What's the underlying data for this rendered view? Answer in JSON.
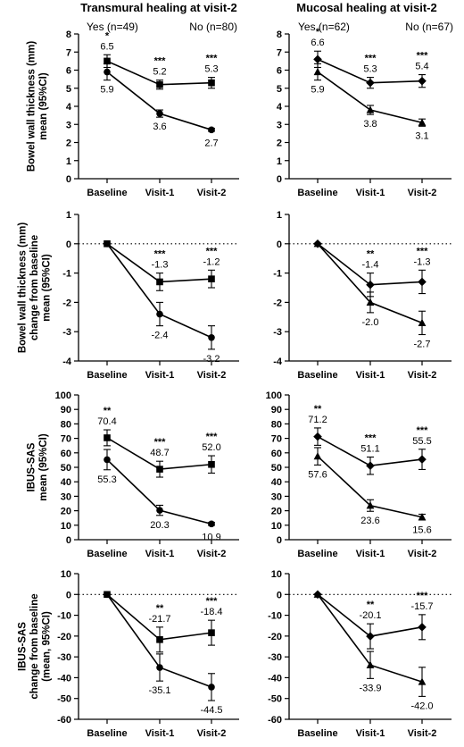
{
  "figure": {
    "columns": [
      {
        "title": "Transmural healing at visit-2",
        "legend_yes": "Yes (n=49)",
        "legend_no": "No (n=80)"
      },
      {
        "title": "Mucosal healing at visit-2",
        "legend_yes": "Yes (n=62)",
        "legend_no": "No (n=67)"
      }
    ]
  },
  "chart_data": [
    {
      "type": "line",
      "row": 0,
      "col": 0,
      "ylabel": [
        "Bowel wall thickness (mm)",
        "mean (95%CI)"
      ],
      "categories": [
        "Baseline",
        "Visit-1",
        "Visit-2"
      ],
      "ylim": [
        0,
        8
      ],
      "ticks": [
        0,
        1,
        2,
        3,
        4,
        5,
        6,
        7,
        8
      ],
      "tick_labels": [
        "0",
        "1",
        "2",
        "3",
        "4",
        "5",
        "6",
        "7",
        "8"
      ],
      "zero_line": false,
      "series": [
        {
          "marker": "square",
          "values": [
            6.5,
            5.2,
            5.3
          ],
          "err": [
            0.35,
            0.25,
            0.3
          ],
          "labels": [
            "6.5",
            "5.2",
            "5.3"
          ],
          "label_pos": "above"
        },
        {
          "marker": "circle",
          "values": [
            5.9,
            3.6,
            2.7
          ],
          "err": [
            0.45,
            0.2,
            0.08
          ],
          "labels": [
            "5.9",
            "3.6",
            "2.7"
          ],
          "label_pos": "below"
        }
      ],
      "significance": [
        "*",
        "***",
        "***"
      ]
    },
    {
      "type": "line",
      "row": 0,
      "col": 1,
      "ylabel": [],
      "categories": [
        "Baseline",
        "Visit-1",
        "Visit-2"
      ],
      "ylim": [
        0,
        8
      ],
      "ticks": [
        0,
        1,
        2,
        3,
        4,
        5,
        6,
        7,
        8
      ],
      "tick_labels": [
        "0",
        "1",
        "2",
        "3",
        "4",
        "5",
        "6",
        "7",
        "8"
      ],
      "zero_line": false,
      "series": [
        {
          "marker": "diamond",
          "values": [
            6.6,
            5.3,
            5.4
          ],
          "err": [
            0.45,
            0.3,
            0.35
          ],
          "labels": [
            "6.6",
            "5.3",
            "5.4"
          ],
          "label_pos": "above"
        },
        {
          "marker": "triangle",
          "values": [
            5.9,
            3.8,
            3.1
          ],
          "err": [
            0.45,
            0.25,
            0.2
          ],
          "labels": [
            "5.9",
            "3.8",
            "3.1"
          ],
          "label_pos": "below"
        }
      ],
      "significance": [
        "*",
        "***",
        "***"
      ]
    },
    {
      "type": "line",
      "row": 1,
      "col": 0,
      "ylabel": [
        "Bowel wall thickness (mm)",
        "change from baseline",
        "mean (95%CI)"
      ],
      "categories": [
        "Baseline",
        "Visit-1",
        "Visit-2"
      ],
      "ylim": [
        -4,
        1
      ],
      "ticks": [
        -4,
        -3,
        -2,
        -1,
        0,
        1
      ],
      "tick_labels": [
        "-4",
        "-3",
        "-2",
        "-1",
        "0",
        "1"
      ],
      "zero_line": true,
      "series": [
        {
          "marker": "square",
          "values": [
            0,
            -1.3,
            -1.2
          ],
          "err": [
            0,
            0.3,
            0.3
          ],
          "labels": [
            "",
            "-1.3",
            "-1.2"
          ],
          "label_pos": "above"
        },
        {
          "marker": "circle",
          "values": [
            0,
            -2.4,
            -3.2
          ],
          "err": [
            0,
            0.4,
            0.4
          ],
          "labels": [
            "",
            "-2.4",
            "-3.2"
          ],
          "label_pos": "below"
        }
      ],
      "significance": [
        "",
        "***",
        "***"
      ]
    },
    {
      "type": "line",
      "row": 1,
      "col": 1,
      "ylabel": [],
      "categories": [
        "Baseline",
        "Visit-1",
        "Visit-2"
      ],
      "ylim": [
        -4,
        1
      ],
      "ticks": [
        -4,
        -3,
        -2,
        -1,
        0,
        1
      ],
      "tick_labels": [
        "-4",
        "-3",
        "-2",
        "-1",
        "0",
        "1"
      ],
      "zero_line": true,
      "series": [
        {
          "marker": "diamond",
          "values": [
            0,
            -1.4,
            -1.3
          ],
          "err": [
            0,
            0.4,
            0.4
          ],
          "labels": [
            "",
            "-1.4",
            "-1.3"
          ],
          "label_pos": "above"
        },
        {
          "marker": "triangle",
          "values": [
            0,
            -2.0,
            -2.7
          ],
          "err": [
            0,
            0.35,
            0.4
          ],
          "labels": [
            "",
            "-2.0",
            "-2.7"
          ],
          "label_pos": "below"
        }
      ],
      "significance": [
        "",
        "**",
        "***"
      ]
    },
    {
      "type": "line",
      "row": 2,
      "col": 0,
      "ylabel": [
        "IBUS-SAS",
        "mean (95%CI)"
      ],
      "categories": [
        "Baseline",
        "Visit-1",
        "Visit-2"
      ],
      "ylim": [
        0,
        100
      ],
      "ticks": [
        0,
        10,
        20,
        30,
        40,
        50,
        60,
        70,
        80,
        90,
        100
      ],
      "tick_labels": [
        "0",
        "10",
        "20",
        "30",
        "40",
        "50",
        "60",
        "70",
        "80",
        "90",
        "100"
      ],
      "zero_line": false,
      "series": [
        {
          "marker": "square",
          "values": [
            70.4,
            48.7,
            52.0
          ],
          "err": [
            5.5,
            5.5,
            6
          ],
          "labels": [
            "70.4",
            "48.7",
            "52.0"
          ],
          "label_pos": "above"
        },
        {
          "marker": "circle",
          "values": [
            55.3,
            20.3,
            10.9
          ],
          "err": [
            7,
            3.5,
            1
          ],
          "labels": [
            "55.3",
            "20.3",
            "10.9"
          ],
          "label_pos": "below"
        }
      ],
      "significance": [
        "**",
        "***",
        "***"
      ]
    },
    {
      "type": "line",
      "row": 2,
      "col": 1,
      "ylabel": [],
      "categories": [
        "Baseline",
        "Visit-1",
        "Visit-2"
      ],
      "ylim": [
        0,
        100
      ],
      "ticks": [
        0,
        10,
        20,
        30,
        40,
        50,
        60,
        70,
        80,
        90,
        100
      ],
      "tick_labels": [
        "0",
        "10",
        "20",
        "30",
        "40",
        "50",
        "60",
        "70",
        "80",
        "90",
        "100"
      ],
      "zero_line": false,
      "series": [
        {
          "marker": "diamond",
          "values": [
            71.2,
            51.1,
            55.5
          ],
          "err": [
            6,
            6,
            7
          ],
          "labels": [
            "71.2",
            "51.1",
            "55.5"
          ],
          "label_pos": "above"
        },
        {
          "marker": "triangle",
          "values": [
            57.6,
            23.6,
            15.6
          ],
          "err": [
            6,
            4,
            2
          ],
          "labels": [
            "57.6",
            "23.6",
            "15.6"
          ],
          "label_pos": "below"
        }
      ],
      "significance": [
        "**",
        "***",
        "***"
      ]
    },
    {
      "type": "line",
      "row": 3,
      "col": 0,
      "ylabel": [
        "IBUS-SAS",
        "change from baseline",
        "(mean, 95%CI)"
      ],
      "categories": [
        "Baseline",
        "Visit-1",
        "Visit-2"
      ],
      "ylim": [
        -60,
        10
      ],
      "ticks": [
        -60,
        -50,
        -40,
        -30,
        -20,
        -10,
        0,
        10
      ],
      "tick_labels": [
        "-60",
        "-50",
        "-40",
        "-30",
        "-20",
        "-10",
        "0",
        "10"
      ],
      "zero_line": true,
      "series": [
        {
          "marker": "square",
          "values": [
            0,
            -21.7,
            -18.4
          ],
          "err": [
            0,
            6,
            6
          ],
          "labels": [
            "",
            "-21.7",
            "-18.4"
          ],
          "label_pos": "above"
        },
        {
          "marker": "circle",
          "values": [
            0,
            -35.1,
            -44.5
          ],
          "err": [
            0,
            6.5,
            6.5
          ],
          "labels": [
            "",
            "-35.1",
            "-44.5"
          ],
          "label_pos": "below"
        }
      ],
      "significance": [
        "",
        "**",
        "***"
      ]
    },
    {
      "type": "line",
      "row": 3,
      "col": 1,
      "ylabel": [],
      "categories": [
        "Baseline",
        "Visit-1",
        "Visit-2"
      ],
      "ylim": [
        -60,
        10
      ],
      "ticks": [
        -60,
        -50,
        -40,
        -30,
        -20,
        -10,
        0,
        10
      ],
      "tick_labels": [
        "-60",
        "-50",
        "-40",
        "-30",
        "-20",
        "-10",
        "0",
        "10"
      ],
      "zero_line": true,
      "series": [
        {
          "marker": "diamond",
          "values": [
            0,
            -20.1,
            -15.7
          ],
          "err": [
            0,
            6,
            6
          ],
          "labels": [
            "",
            "-20.1",
            "-15.7"
          ],
          "label_pos": "above"
        },
        {
          "marker": "triangle",
          "values": [
            0,
            -33.9,
            -42.0
          ],
          "err": [
            0,
            6.5,
            7
          ],
          "labels": [
            "",
            "-33.9",
            "-42.0"
          ],
          "label_pos": "below"
        }
      ],
      "significance": [
        "",
        "**",
        "***"
      ]
    }
  ]
}
